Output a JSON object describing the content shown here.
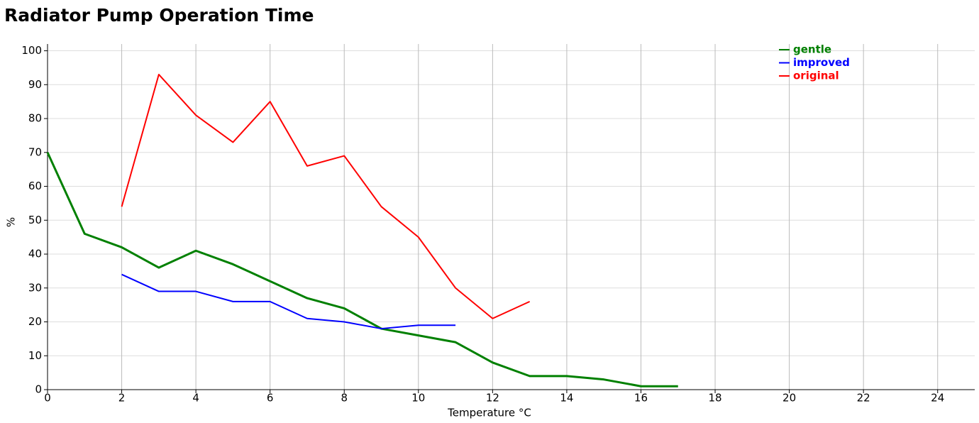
{
  "chart_data": {
    "type": "line",
    "title": "Radiator Pump Operation Time",
    "x_label": "Temperature °C",
    "y_label": "%",
    "xlim": [
      0,
      25
    ],
    "ylim": [
      0,
      102
    ],
    "xticks": [
      0,
      2,
      4,
      6,
      8,
      10,
      12,
      14,
      16,
      18,
      20,
      22,
      24
    ],
    "yticks": [
      0,
      10,
      20,
      30,
      40,
      50,
      60,
      70,
      80,
      90,
      100
    ],
    "grid": true,
    "legend": "upper right",
    "series": [
      {
        "name": "gentle",
        "color": "#008000",
        "x": [
          0,
          1,
          2,
          3,
          4,
          5,
          6,
          7,
          8,
          9,
          10,
          11,
          12,
          13,
          14,
          15,
          16,
          17
        ],
        "values": [
          70,
          46,
          42,
          36,
          41,
          37,
          32,
          27,
          24,
          18,
          16,
          14,
          8,
          4,
          4,
          3,
          1,
          1
        ]
      },
      {
        "name": "improved",
        "color": "#0000ff",
        "x": [
          2,
          3,
          4,
          5,
          6,
          7,
          8,
          9,
          10,
          11
        ],
        "values": [
          34,
          29,
          29,
          26,
          26,
          21,
          20,
          18,
          19,
          19
        ]
      },
      {
        "name": "original",
        "color": "#ff0000",
        "x": [
          2,
          3,
          4,
          5,
          6,
          7,
          8,
          9,
          10,
          11,
          12,
          13
        ],
        "values": [
          54,
          93,
          81,
          73,
          85,
          66,
          69,
          54,
          45,
          30,
          21,
          26
        ]
      }
    ]
  }
}
